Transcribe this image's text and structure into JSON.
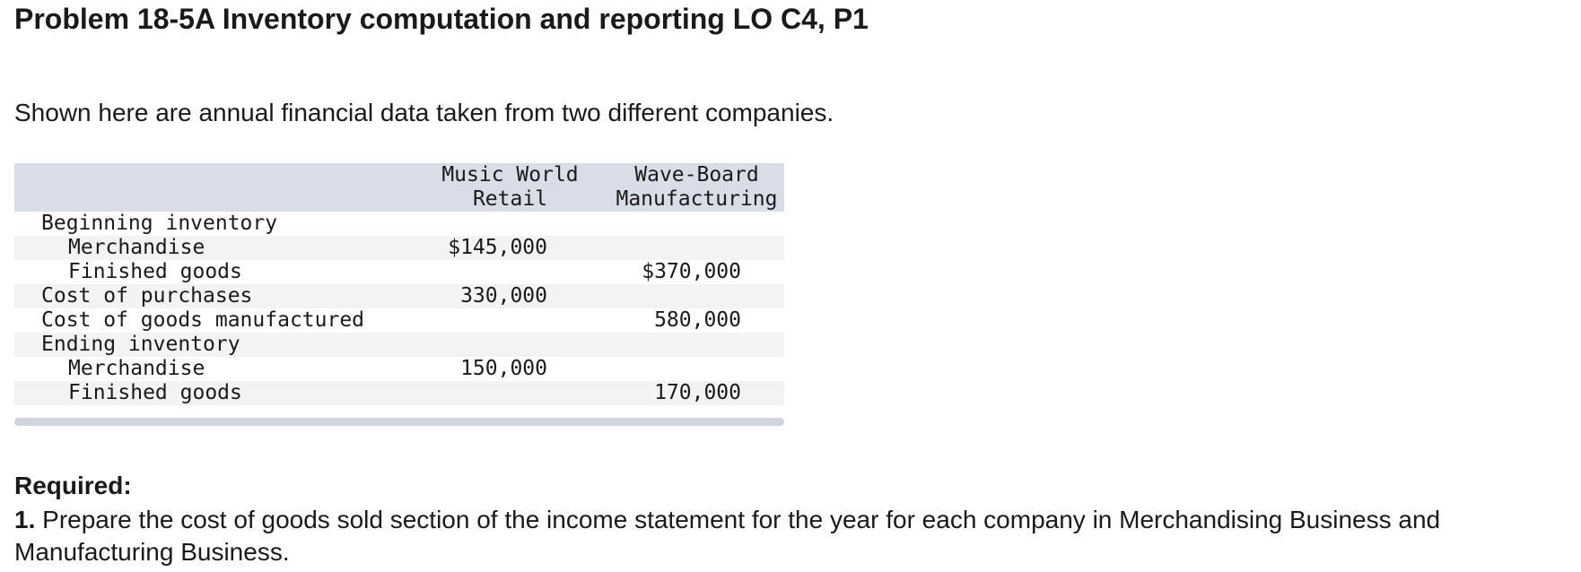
{
  "title": "Problem 18-5A Inventory computation and reporting LO C4, P1",
  "intro": "Shown here are annual financial data taken from two different companies.",
  "table": {
    "headers": {
      "col1": [
        "Music World",
        "Retail"
      ],
      "col2": [
        "Wave-Board",
        "Manufacturing"
      ]
    },
    "rows": [
      {
        "label": "Beginning inventory",
        "indent": false,
        "v1": "",
        "v2": ""
      },
      {
        "label": "Merchandise",
        "indent": true,
        "v1": "$145,000",
        "v2": ""
      },
      {
        "label": "Finished goods",
        "indent": true,
        "v1": "",
        "v2": "$370,000"
      },
      {
        "label": "Cost of purchases",
        "indent": false,
        "v1": "330,000",
        "v2": ""
      },
      {
        "label": "Cost of goods manufactured",
        "indent": false,
        "v1": "",
        "v2": "580,000"
      },
      {
        "label": "Ending inventory",
        "indent": false,
        "v1": "",
        "v2": ""
      },
      {
        "label": "Merchandise",
        "indent": true,
        "v1": "150,000",
        "v2": ""
      },
      {
        "label": "Finished goods",
        "indent": true,
        "v1": "",
        "v2": "170,000"
      }
    ]
  },
  "required": {
    "heading": "Required:",
    "item_number": "1.",
    "item_text": "Prepare the cost of goods sold section of the income statement for the year for each company in Merchandising Business and Manufacturing Business."
  }
}
